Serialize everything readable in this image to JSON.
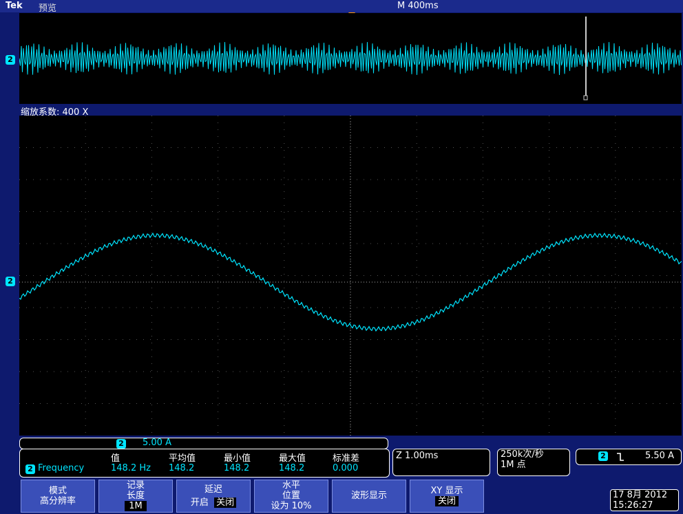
{
  "topbar": {
    "brand": "Tek",
    "mode": "预览",
    "timebase": "M 400ms"
  },
  "overview": {
    "channel_marker": "2",
    "zoom_label": "缩放系数: 400 X"
  },
  "main": {
    "channel_marker": "2"
  },
  "scale_readout": {
    "channel": "2",
    "value": "5.00 A"
  },
  "measurement": {
    "channel": "2",
    "name": "Frequency",
    "headers": [
      "值",
      "平均值",
      "最小值",
      "最大值",
      "标准差"
    ],
    "values": [
      "148.2 Hz",
      "148.2",
      "148.2",
      "148.2",
      "0.000"
    ]
  },
  "zoom_time": "Z 1.00ms",
  "acquisition": {
    "rate": "250k次/秒",
    "points": "1M 点"
  },
  "trigger": {
    "channel": "2",
    "slope_icon": "falling-edge-icon",
    "level": "5.50 A"
  },
  "menu": {
    "mode": {
      "line1": "模式",
      "line2": "高分辨率"
    },
    "record": {
      "line1": "记录",
      "line2": "长度",
      "value": "1M"
    },
    "delay": {
      "line1": "延迟",
      "on": "开启",
      "off": "关闭"
    },
    "horizontal": {
      "line1": "水平",
      "line2": "位置",
      "line3": "设为 10%"
    },
    "waveform": {
      "label": "波形显示"
    },
    "xy": {
      "line1": "XY 显示",
      "line2": "关闭"
    }
  },
  "datetime": {
    "date": "17 8月  2012",
    "time": "15:26:27"
  },
  "colors": {
    "trace": "#00e5ff",
    "background": "#000000",
    "frame": "#0e1a6e",
    "button": "#3a4fb8"
  }
}
